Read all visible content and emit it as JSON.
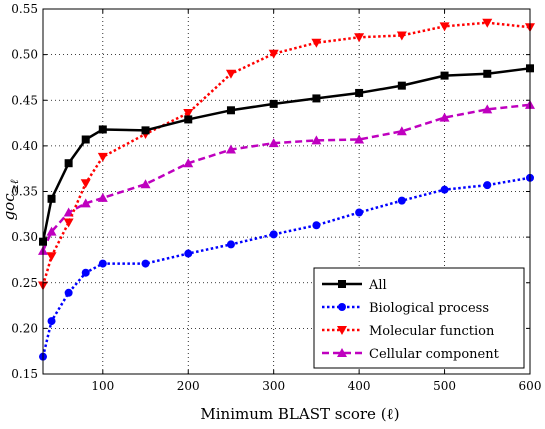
{
  "chart_data": {
    "type": "line",
    "xlabel": "Minimum BLAST score (ℓ)",
    "ylabel_main": "goc",
    "ylabel_sub": "≥ℓ",
    "xlim": [
      30,
      600
    ],
    "ylim": [
      0.15,
      0.55
    ],
    "xticks": [
      100,
      200,
      300,
      400,
      500,
      600
    ],
    "yticks": [
      0.15,
      0.2,
      0.25,
      0.3,
      0.35,
      0.4,
      0.45,
      0.5,
      0.55
    ],
    "ytick_labels": [
      "0.15",
      "0.20",
      "0.25",
      "0.30",
      "0.35",
      "0.40",
      "0.45",
      "0.50",
      "0.55"
    ],
    "xtick_labels": [
      "100",
      "200",
      "300",
      "400",
      "500",
      "600"
    ],
    "grid": true,
    "legend_position": "bottom-right",
    "x": [
      30,
      40,
      60,
      80,
      100,
      150,
      200,
      250,
      300,
      350,
      400,
      450,
      500,
      550,
      600
    ],
    "series": [
      {
        "name": "All",
        "color": "#000000",
        "marker": "square",
        "dash": "solid",
        "values": [
          0.295,
          0.342,
          0.381,
          0.407,
          0.418,
          0.417,
          0.429,
          0.439,
          0.446,
          0.452,
          0.458,
          0.466,
          0.477,
          0.479,
          0.485
        ]
      },
      {
        "name": "Biological process",
        "color": "#0000ff",
        "marker": "circle",
        "dash": "dotted",
        "values": [
          0.169,
          0.208,
          0.239,
          0.261,
          0.271,
          0.271,
          0.282,
          0.292,
          0.303,
          0.313,
          0.327,
          0.34,
          0.352,
          0.357,
          0.365
        ]
      },
      {
        "name": "Molecular function",
        "color": "#ff0000",
        "marker": "triangle-down",
        "dash": "dotted",
        "values": [
          0.247,
          0.279,
          0.316,
          0.359,
          0.388,
          0.413,
          0.436,
          0.479,
          0.501,
          0.513,
          0.519,
          0.521,
          0.531,
          0.535,
          0.53
        ]
      },
      {
        "name": "Cellular component",
        "color": "#bf00bf",
        "marker": "triangle-up",
        "dash": "dashed",
        "values": [
          0.285,
          0.306,
          0.327,
          0.337,
          0.343,
          0.358,
          0.381,
          0.396,
          0.403,
          0.406,
          0.407,
          0.416,
          0.431,
          0.44,
          0.445
        ]
      }
    ]
  }
}
